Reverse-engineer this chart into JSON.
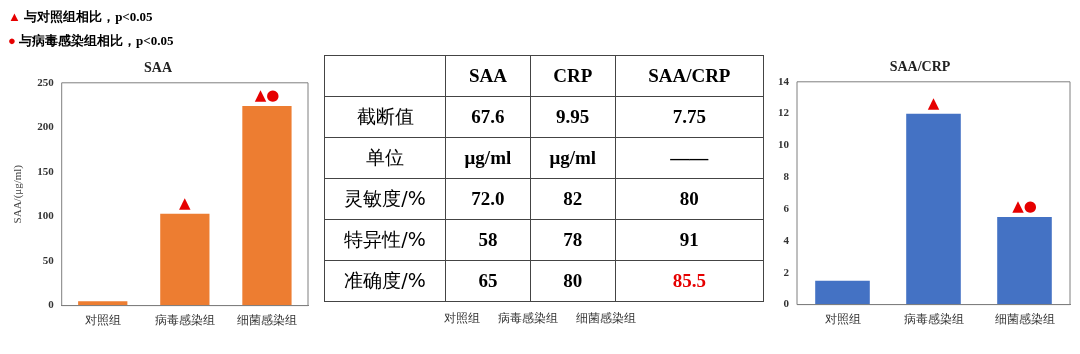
{
  "chart_data": [
    {
      "type": "bar",
      "title": "SAA",
      "ylabel": "SAA/(μg/ml)",
      "categories": [
        "对照组",
        "病毒感染组",
        "细菌感染组"
      ],
      "values": [
        5,
        103,
        224
      ],
      "color": "#ed7d31",
      "ylim": [
        0,
        250
      ],
      "yticks": [
        0,
        50,
        100,
        150,
        200,
        250
      ],
      "grid": false,
      "legend": false,
      "annotations": [
        "▲ 与对照组相比，p<0.05",
        "● 与病毒感染组相比，p<0.05",
        {
          "text": "▲",
          "x": "病毒感染组",
          "y": 103
        },
        {
          "text": "▲●",
          "x": "细菌感染组",
          "y": 224
        }
      ]
    },
    {
      "type": "other",
      "categories": [
        "SAA",
        "CRP",
        "SAA/CRP"
      ],
      "y_categories": [
        "截断值",
        "单位",
        "灵敏度/%",
        "特异性/%",
        "准确度/%"
      ],
      "cell_labels": [
        [
          "67.6",
          "9.95",
          "7.75"
        ],
        [
          "μg/ml",
          "μg/ml",
          "——"
        ],
        [
          "72.0",
          "82",
          "80"
        ],
        [
          "58",
          "78",
          "91"
        ],
        [
          "65",
          "80",
          "85.5"
        ]
      ],
      "colors": [
        [
          "#000000",
          "#000000",
          "#000000"
        ],
        [
          "#000000",
          "#000000",
          "#000000"
        ],
        [
          "#000000",
          "#000000",
          "#000000"
        ],
        [
          "#000000",
          "#000000",
          "#000000"
        ],
        [
          "#000000",
          "#000000",
          "#e60000"
        ]
      ],
      "annotations": [
        "对照组",
        "病毒感染组",
        "细菌感染组"
      ]
    },
    {
      "type": "bar",
      "title": "SAA/CRP",
      "categories": [
        "对照组",
        "病毒感染组",
        "细菌感染组"
      ],
      "values": [
        1.5,
        12,
        5.5
      ],
      "color": "#4472c4",
      "ylim": [
        0,
        14
      ],
      "yticks": [
        0,
        2,
        4,
        6,
        8,
        10,
        12,
        14
      ],
      "grid": false,
      "legend": false,
      "annotations": [
        {
          "text": "▲",
          "x": "病毒感染组",
          "y": 12
        },
        {
          "text": "▲●",
          "x": "细菌感染组",
          "y": 5.5
        }
      ]
    }
  ]
}
